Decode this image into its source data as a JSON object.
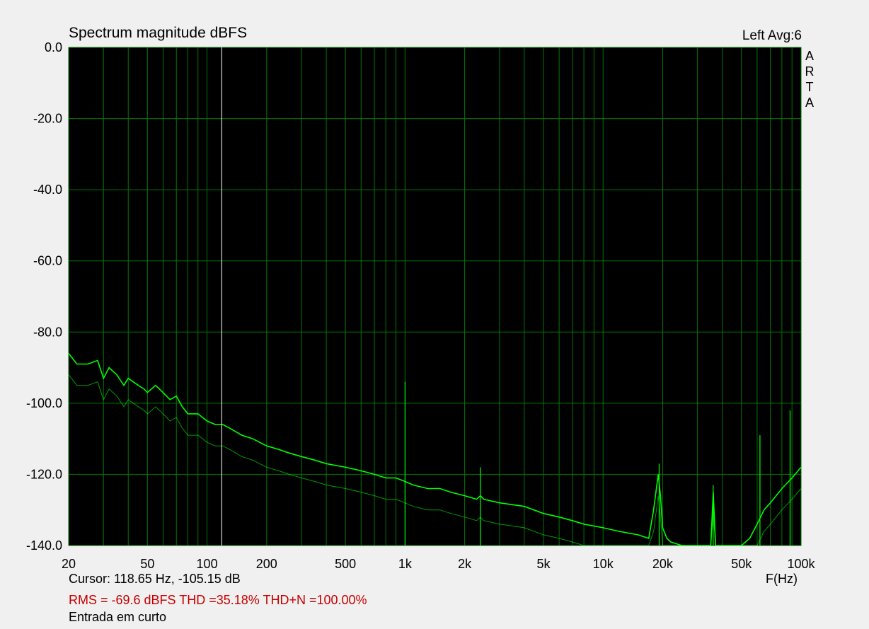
{
  "header": {
    "title": "Spectrum magnitude dBFS",
    "channel": "Left  Avg:6",
    "brand_letters": [
      "A",
      "R",
      "T",
      "A"
    ]
  },
  "footer": {
    "cursor": "Cursor: 118.65 Hz, -105.15 dB",
    "x_unit": "F(Hz)",
    "stats": "RMS =  -69.6 dBFS  THD =35.18%  THD+N =100.00%",
    "note": "Entrada em curto"
  },
  "colors": {
    "background": "#000000",
    "grid": "#007800",
    "trace": "#00ff00",
    "cursor_line": "#ffffff",
    "stats_text": "#c80000"
  },
  "chart_data": {
    "type": "line",
    "title": "Spectrum magnitude dBFS",
    "xlabel": "F(Hz)",
    "ylabel": "",
    "x_scale": "log",
    "xlim": [
      20,
      100000
    ],
    "ylim": [
      -140,
      0
    ],
    "grid": true,
    "x_ticks": [
      {
        "value": 20,
        "label": "20"
      },
      {
        "value": 50,
        "label": "50"
      },
      {
        "value": 100,
        "label": "100"
      },
      {
        "value": 200,
        "label": "200"
      },
      {
        "value": 500,
        "label": "500"
      },
      {
        "value": 1000,
        "label": "1k"
      },
      {
        "value": 2000,
        "label": "2k"
      },
      {
        "value": 5000,
        "label": "5k"
      },
      {
        "value": 10000,
        "label": "10k"
      },
      {
        "value": 20000,
        "label": "20k"
      },
      {
        "value": 50000,
        "label": "50k"
      },
      {
        "value": 100000,
        "label": "100k"
      }
    ],
    "y_ticks": [
      {
        "value": 0,
        "label": "0.0"
      },
      {
        "value": -20,
        "label": "-20.0"
      },
      {
        "value": -40,
        "label": "-40.0"
      },
      {
        "value": -60,
        "label": "-60.0"
      },
      {
        "value": -80,
        "label": "-80.0"
      },
      {
        "value": -100,
        "label": "-100.0"
      },
      {
        "value": -120,
        "label": "-120.0"
      },
      {
        "value": -140,
        "label": "-140.0"
      }
    ],
    "cursor": {
      "x": 118.65,
      "y": -105.15
    },
    "series": [
      {
        "x": [
          20,
          22,
          25,
          28,
          30,
          32,
          35,
          38,
          40,
          45,
          48,
          50,
          55,
          60,
          65,
          70,
          75,
          80,
          90,
          100,
          110,
          120,
          130,
          150,
          170,
          200,
          230,
          260,
          300,
          350,
          400,
          500,
          600,
          700,
          800,
          900,
          1000,
          1100,
          1300,
          1500,
          1700,
          2000,
          2300,
          2400,
          2500,
          3000,
          4000,
          5000,
          6000,
          7000,
          8000,
          10000,
          12000,
          15000,
          17000,
          18000,
          19000,
          19500,
          20000,
          21000,
          22000,
          25000,
          30000,
          35000,
          36000,
          37000,
          40000,
          50000,
          55000,
          60000,
          65000,
          70000,
          80000,
          90000,
          100000
        ],
        "y": [
          -86,
          -89,
          -89,
          -88,
          -93,
          -90,
          -92,
          -95,
          -93,
          -95,
          -96,
          -97,
          -95,
          -97,
          -99,
          -98,
          -101,
          -103,
          -103,
          -105,
          -106,
          -106,
          -107,
          -109,
          -110,
          -112,
          -113,
          -114,
          -115,
          -116,
          -117,
          -118,
          -119,
          -120,
          -121,
          -121,
          -122,
          -123,
          -124,
          -124,
          -125,
          -126,
          -127,
          -126,
          -127,
          -128,
          -129,
          -131,
          -132,
          -133,
          -134,
          -135,
          -136,
          -137,
          -138,
          -130,
          -120,
          -126,
          -135,
          -138,
          -139,
          -140,
          -140,
          -140,
          -125,
          -140,
          -140,
          -140,
          -138,
          -134,
          -130,
          -128,
          -124,
          -121,
          -118
        ]
      }
    ],
    "spikes": [
      {
        "x": 1000,
        "y": -94
      },
      {
        "x": 2400,
        "y": -118
      },
      {
        "x": 19200,
        "y": -117
      },
      {
        "x": 36000,
        "y": -123
      },
      {
        "x": 62000,
        "y": -109
      },
      {
        "x": 88000,
        "y": -102
      }
    ]
  }
}
